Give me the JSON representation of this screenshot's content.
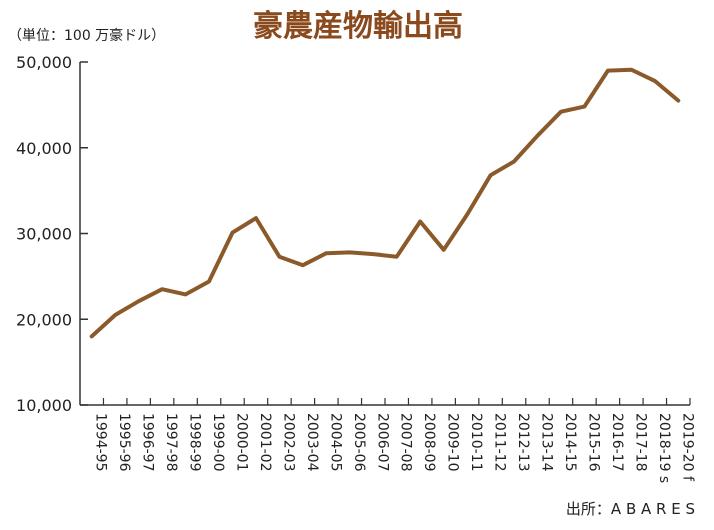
{
  "chart_data": {
    "type": "line",
    "title": "豪農産物輸出高",
    "unit_label": "（単位：100 万豪ドル）",
    "source": "出所：A B A R E S",
    "ylim": [
      10000,
      50000
    ],
    "y_ticks": [
      10000,
      20000,
      30000,
      40000,
      50000
    ],
    "y_tick_labels": [
      "10,000",
      "20,000",
      "30,000",
      "40,000",
      "50,000"
    ],
    "grid": false,
    "line_color": "#8B5A2B",
    "title_color": "#8B4A1E",
    "categories": [
      "1994-95",
      "1995-96",
      "1996-97",
      "1997-98",
      "1998-99",
      "1999-00",
      "2000-01",
      "2001-02",
      "2002-03",
      "2003-04",
      "2004-05",
      "2005-06",
      "2006-07",
      "2007-08",
      "2008-09",
      "2009-10",
      "2010-11",
      "2011-12",
      "2012-13",
      "2013-14",
      "2014-15",
      "2015-16",
      "2016-17",
      "2017-18",
      "2018-19 s",
      "2019-20 f"
    ],
    "values": [
      18000,
      20500,
      22100,
      23500,
      22900,
      24400,
      30100,
      31800,
      27300,
      26300,
      27700,
      27800,
      27600,
      27300,
      31400,
      28100,
      32200,
      36800,
      38400,
      41400,
      44200,
      44800,
      49000,
      49100,
      47800,
      45500
    ]
  }
}
